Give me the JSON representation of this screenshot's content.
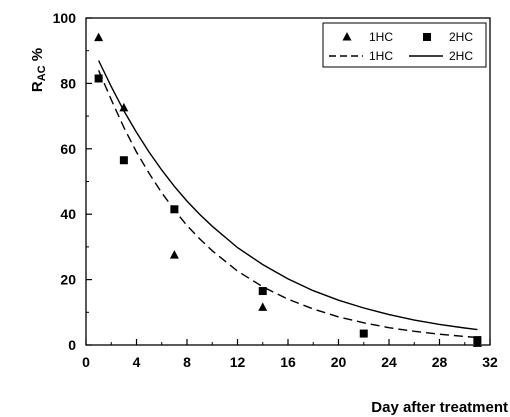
{
  "chart_data": {
    "type": "scatter",
    "title": "",
    "xlabel": "Day after treatment",
    "ylabel_main": "R",
    "ylabel_sub": "AC",
    "ylabel_suffix": " %",
    "xlim": [
      0,
      32
    ],
    "ylim": [
      0,
      100
    ],
    "x_ticks": [
      "0",
      "4",
      "8",
      "12",
      "16",
      "20",
      "24",
      "28",
      "32"
    ],
    "y_ticks": [
      "0",
      "20",
      "40",
      "60",
      "80",
      "100"
    ],
    "grid": false,
    "legend_position": "top-right",
    "series": [
      {
        "name": "1HC",
        "kind": "markers",
        "marker": "triangle",
        "points": [
          [
            1,
            94
          ],
          [
            3,
            72.5
          ],
          [
            7,
            27.5
          ],
          [
            14,
            11.5
          ],
          [
            31,
            0.5
          ]
        ]
      },
      {
        "name": "2HC",
        "kind": "markers",
        "marker": "square",
        "points": [
          [
            1,
            81.5
          ],
          [
            3,
            56.5
          ],
          [
            7,
            41.5
          ],
          [
            14,
            16.5
          ],
          [
            22,
            3.5
          ],
          [
            31,
            1.5
          ]
        ]
      },
      {
        "name": "1HC",
        "kind": "line",
        "dash": "dashed",
        "points": [
          [
            1,
            84
          ],
          [
            2,
            75
          ],
          [
            3,
            66.5
          ],
          [
            4,
            59
          ],
          [
            5,
            52.5
          ],
          [
            6,
            46.5
          ],
          [
            7,
            41.3
          ],
          [
            8,
            36.5
          ],
          [
            9,
            32.5
          ],
          [
            10,
            28.8
          ],
          [
            12,
            22.6
          ],
          [
            14,
            17.8
          ],
          [
            16,
            14
          ],
          [
            18,
            11
          ],
          [
            20,
            8.6
          ],
          [
            22,
            6.8
          ],
          [
            24,
            5.3
          ],
          [
            26,
            4.2
          ],
          [
            28,
            3.3
          ],
          [
            30,
            2.6
          ],
          [
            31,
            2.3
          ]
        ]
      },
      {
        "name": "2HC",
        "kind": "line",
        "dash": "solid",
        "points": [
          [
            1,
            87
          ],
          [
            2,
            79
          ],
          [
            3,
            71.6
          ],
          [
            4,
            65
          ],
          [
            5,
            59
          ],
          [
            6,
            53.5
          ],
          [
            7,
            48.5
          ],
          [
            8,
            44
          ],
          [
            9,
            40
          ],
          [
            10,
            36.3
          ],
          [
            12,
            29.8
          ],
          [
            14,
            24.6
          ],
          [
            16,
            20.2
          ],
          [
            18,
            16.6
          ],
          [
            20,
            13.7
          ],
          [
            22,
            11.3
          ],
          [
            24,
            9.3
          ],
          [
            26,
            7.6
          ],
          [
            28,
            6.3
          ],
          [
            30,
            5.2
          ],
          [
            31,
            4.7
          ]
        ]
      }
    ]
  }
}
